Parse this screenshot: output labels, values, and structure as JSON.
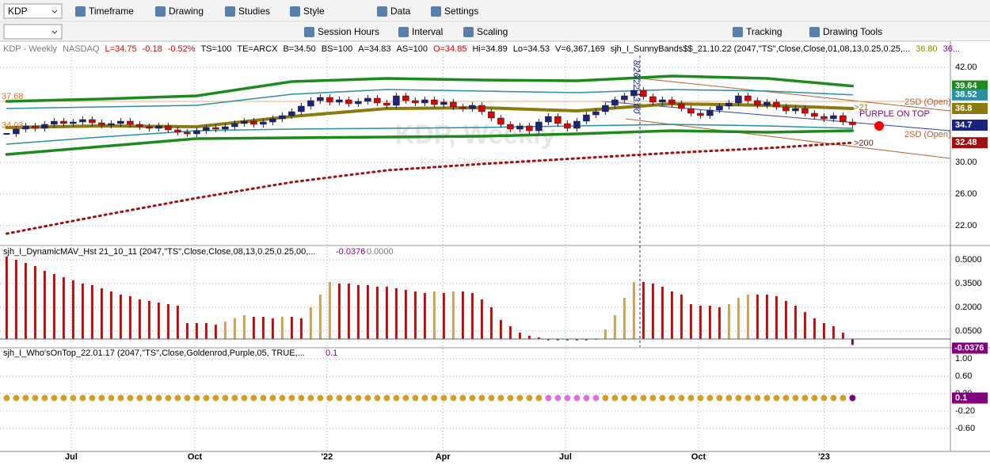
{
  "toolbar": {
    "symbol": "KDP",
    "row1": [
      "Timeframe",
      "Drawing",
      "Studies",
      "Style",
      "Data",
      "Settings"
    ],
    "row2": [
      "Session Hours",
      "Interval",
      "Scaling",
      "Tracking",
      "Drawing Tools"
    ]
  },
  "header": [
    {
      "text": "KDP - Weekly",
      "color": "#7a7a7a"
    },
    {
      "text": "NASDAQ",
      "color": "#7a7a7a"
    },
    {
      "text": "L=34.75",
      "color": "#d00000"
    },
    {
      "text": "-0.18",
      "color": "#d00000"
    },
    {
      "text": "-0.52%",
      "color": "#d00000"
    },
    {
      "text": "TS=100",
      "color": "#000"
    },
    {
      "text": "TE=ARCX",
      "color": "#000"
    },
    {
      "text": "B=34.50",
      "color": "#000"
    },
    {
      "text": "BS=100",
      "color": "#000"
    },
    {
      "text": "A=34.83",
      "color": "#000"
    },
    {
      "text": "AS=100",
      "color": "#000"
    },
    {
      "text": "O=34.85",
      "color": "#d00000"
    },
    {
      "text": "Hi=34.89",
      "color": "#000"
    },
    {
      "text": "Lo=34.53",
      "color": "#000"
    },
    {
      "text": "V=6,367,169",
      "color": "#000"
    },
    {
      "text": "sjh_I_SunnyBands$$_21.10.22 (2047,\"TS\",Close,Close,01,08,13,0.25,0.25,...",
      "color": "#000"
    },
    {
      "text": "36.80",
      "color": "#8a8a00"
    },
    {
      "text": "36...",
      "color": "#800080"
    }
  ],
  "watermark": {
    "title": "KDP, Weekly",
    "subtitle": "Keurig Dr Pepper Inc"
  },
  "chart_data": [
    {
      "type": "candlestick",
      "xlim": [
        -0.7,
        99.3
      ],
      "ylim": [
        20,
        45.3
      ],
      "xticks": [
        {
          "value": 6.8,
          "label": "Jul"
        },
        {
          "value": 19.8,
          "label": "Oct"
        },
        {
          "value": 33.7,
          "label": "'22"
        },
        {
          "value": 45.9,
          "label": "Apr"
        },
        {
          "value": 58.8,
          "label": "Jul"
        },
        {
          "value": 72.8,
          "label": "Oct"
        },
        {
          "value": 86.0,
          "label": "'23"
        }
      ],
      "yticks": [
        {
          "value": 42,
          "label": "42.00"
        },
        {
          "value": 30,
          "label": "30.00"
        },
        {
          "value": 26,
          "label": "26.00"
        },
        {
          "value": 22,
          "label": "22.00"
        }
      ],
      "closes": [
        33.6,
        34.2,
        34.6,
        34.3,
        34.8,
        35.2,
        34.9,
        35.1,
        35.4,
        35.0,
        34.7,
        34.9,
        35.2,
        34.8,
        34.5,
        34.3,
        34.6,
        34.1,
        33.8,
        33.6,
        34.0,
        34.4,
        34.2,
        34.5,
        34.9,
        35.2,
        34.8,
        35.1,
        35.5,
        35.9,
        36.4,
        37.1,
        37.8,
        38.2,
        37.6,
        37.9,
        37.4,
        37.7,
        38.1,
        37.5,
        37.2,
        38.4,
        37.8,
        37.5,
        37.9,
        37.3,
        37.6,
        37.0,
        36.8,
        37.2,
        36.4,
        35.6,
        34.8,
        34.2,
        34.6,
        34.0,
        35.1,
        35.8,
        34.9,
        34.3,
        35.2,
        36.0,
        36.4,
        37.2,
        37.9,
        38.4,
        39.1,
        38.3,
        37.6,
        37.9,
        37.4,
        36.8,
        36.2,
        35.9,
        36.6,
        37.1,
        37.5,
        38.4,
        37.8,
        37.2,
        37.6,
        37.0,
        36.5,
        36.8,
        36.2,
        35.8,
        35.5,
        35.9,
        35.1,
        34.75
      ],
      "up_color": "#1a237e",
      "down_color": "#e00000",
      "bands_x": [
        0,
        10,
        20,
        30,
        40,
        50,
        60,
        70,
        80,
        89
      ],
      "bands": [
        {
          "color": "#1e8a1e",
          "width": 3.5,
          "values": [
            37.7,
            38.0,
            38.4,
            40.2,
            40.6,
            40.4,
            40.3,
            40.9,
            40.6,
            39.64
          ]
        },
        {
          "color": "#1e8a1e",
          "width": 3.5,
          "values": [
            31.0,
            32.0,
            33.0,
            33.1,
            33.2,
            33.3,
            33.6,
            34.0,
            33.8,
            34.0
          ]
        },
        {
          "color": "#2a8fa0",
          "width": 1.5,
          "values": [
            36.8,
            37.0,
            37.2,
            38.6,
            39.2,
            39.0,
            38.8,
            39.2,
            39.0,
            38.52
          ]
        },
        {
          "color": "#2a8fa0",
          "width": 1.5,
          "values": [
            32.3,
            33.2,
            34.0,
            34.2,
            34.3,
            34.4,
            34.6,
            34.8,
            34.6,
            34.3
          ]
        },
        {
          "color": "#8a7a10",
          "width": 4,
          "values": [
            34.4,
            34.6,
            34.5,
            35.8,
            36.8,
            36.9,
            36.5,
            37.4,
            37.2,
            36.8
          ]
        },
        {
          "color": "#a01010",
          "width": 3,
          "dotted": true,
          "values": [
            21.0,
            23.3,
            25.5,
            27.5,
            29.0,
            29.8,
            30.5,
            31.2,
            31.8,
            32.48
          ]
        }
      ],
      "right_labels": [
        {
          "value": 39.64,
          "color": "#1e8a1e"
        },
        {
          "value": 38.52,
          "color": "#2a8fa0"
        },
        {
          "value": 36.8,
          "color": "#8a7a10"
        },
        {
          "value": 34.7,
          "color": "#1a237e"
        },
        {
          "value": 32.48,
          "color": "#a01010"
        }
      ],
      "left_labels": [
        37.68,
        34.03
      ],
      "annotations": [
        "2SD (Open)",
        "2SD (Open)",
        "PURPLE ON TOP",
        ">21",
        ">200",
        "8/26/22 13:00"
      ]
    },
    {
      "type": "histogram-bar",
      "title": "sjh_I_DynamicMAV_Hst 21_10_11 (2047,\"TS\",Close,Close,08,13,0.25,0.25,00,...",
      "last": -0.0376,
      "zero_label": "0.0000",
      "ylim": [
        -0.05,
        0.58
      ],
      "yticks": [
        {
          "value": 0.5,
          "label": "0.5000"
        },
        {
          "value": 0.35,
          "label": "0.3500"
        },
        {
          "value": 0.2,
          "label": "0.2000"
        },
        {
          "value": 0.05,
          "label": "0.0500"
        }
      ],
      "colors": {
        "falling": "#e00000",
        "rising": "#d4a040",
        "negative": "#2e8b57",
        "last": "#800080"
      },
      "values": [
        0.52,
        0.5,
        0.48,
        0.46,
        0.43,
        0.41,
        0.39,
        0.37,
        0.35,
        0.34,
        0.32,
        0.3,
        0.28,
        0.27,
        0.25,
        0.24,
        0.23,
        0.22,
        0.21,
        0.1,
        0.1,
        0.1,
        0.09,
        0.11,
        0.13,
        0.15,
        0.14,
        0.14,
        0.13,
        0.14,
        0.14,
        0.13,
        0.2,
        0.28,
        0.36,
        0.35,
        0.35,
        0.34,
        0.34,
        0.33,
        0.33,
        0.32,
        0.31,
        0.3,
        0.29,
        0.3,
        0.29,
        0.3,
        0.3,
        0.29,
        0.25,
        0.2,
        0.12,
        0.08,
        0.04,
        0.02,
        0.01,
        -0.01,
        -0.01,
        -0.01,
        -0.01,
        -0.01,
        -0.005,
        0.06,
        0.15,
        0.26,
        0.36,
        0.36,
        0.35,
        0.33,
        0.3,
        0.28,
        0.22,
        0.21,
        0.21,
        0.2,
        0.22,
        0.26,
        0.28,
        0.28,
        0.28,
        0.27,
        0.24,
        0.21,
        0.17,
        0.13,
        0.1,
        0.08,
        0.04,
        -0.0376
      ]
    },
    {
      "type": "dots",
      "title": "sjh_I_Who'sOnTop_22.01.17 (2047,\"TS\",Close,Goldenrod,Purple,05, TRUE,...",
      "last": 0.1,
      "ylim": [
        -1.13,
        1.24
      ],
      "yticks": [
        {
          "value": 1,
          "label": "1.00"
        },
        {
          "value": 0.6,
          "label": "0.60"
        },
        {
          "value": 0.2,
          "label": "0.20"
        },
        {
          "value": -0.2,
          "label": "-0.20"
        },
        {
          "value": -0.6,
          "label": "-0.60"
        }
      ],
      "colors": {
        "on": "#d4a020",
        "off": "#e070e0",
        "last": "#800080"
      },
      "values": [
        0.1,
        0.1,
        0.1,
        0.1,
        0.1,
        0.1,
        0.1,
        0.1,
        0.1,
        0.1,
        0.1,
        0.1,
        0.1,
        0.1,
        0.1,
        0.1,
        0.1,
        0.1,
        0.1,
        0.1,
        0.1,
        0.1,
        0.1,
        0.1,
        0.1,
        0.1,
        0.1,
        0.1,
        0.1,
        0.1,
        0.1,
        0.1,
        0.1,
        0.1,
        0.1,
        0.1,
        0.1,
        0.1,
        0.1,
        0.1,
        0.1,
        0.1,
        0.1,
        0.1,
        0.1,
        0.1,
        0.1,
        0.1,
        0.1,
        0.1,
        0.1,
        0.1,
        0.1,
        0.1,
        0.1,
        0.1,
        0.1,
        0.1,
        0.1,
        0.1,
        0.1,
        0.1,
        0.1,
        0.1,
        0.1,
        0.1,
        0.1,
        0.1,
        0.1,
        0.1,
        0.1,
        0.1,
        0.1,
        0.1,
        0.1,
        0.1,
        0.1,
        0.1,
        0.1,
        0.1,
        0.1,
        0.1,
        0.1,
        0.1,
        0.1,
        0.1,
        0.1,
        0.1,
        0.1,
        0.1
      ]
    }
  ]
}
